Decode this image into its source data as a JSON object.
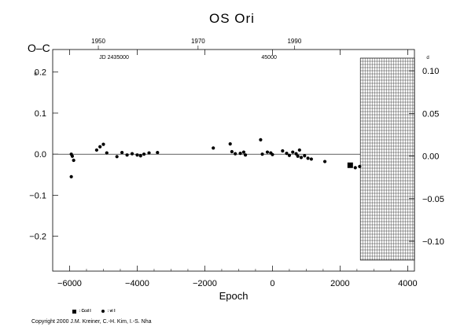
{
  "chart_data": {
    "type": "scatter",
    "title": "OS  Ori",
    "xlabel": "Epoch",
    "ylabel": "O–C",
    "xlim": [
      -6500,
      4200
    ],
    "ylim": [
      -0.285,
      0.255
    ],
    "x_ticks": [
      -6000,
      -4000,
      -2000,
      0,
      2000,
      4000
    ],
    "x_tick_labels": [
      "−6000",
      "−4000",
      "−2000",
      "0",
      "2000",
      "4000"
    ],
    "y_left_ticks": [
      0.2,
      0.1,
      0.0,
      -0.1,
      -0.2
    ],
    "y_left_tick_labels": [
      "0.2",
      "0.1",
      "0.0",
      "−0.1",
      "−0.2"
    ],
    "y_right_ticks": [
      0.1,
      0.05,
      0.0,
      -0.05,
      -0.1
    ],
    "y_right_tick_labels": [
      "0.10",
      "0.05",
      "0.00",
      "−0.05",
      "−0.10"
    ],
    "y_right_ylim": [
      -0.135,
      0.125
    ],
    "top_axis_years": [
      "1950",
      "1970",
      "1990"
    ],
    "top_axis_year_epochs": [
      -5150,
      -2200,
      650
    ],
    "annotations": [
      "JD 2435000",
      "45000",
      "d"
    ],
    "shaded_region_x": [
      2600,
      4200
    ],
    "grid": false,
    "series": [
      {
        "name": "ccd",
        "marker": "square",
        "points": [
          [
            2300,
            -0.027
          ]
        ]
      },
      {
        "name": "vis",
        "marker": "dot",
        "points": [
          [
            -5950,
            0.0
          ],
          [
            -5920,
            -0.005
          ],
          [
            -5880,
            -0.015
          ],
          [
            -5950,
            -0.055
          ],
          [
            -5200,
            0.01
          ],
          [
            -5100,
            0.018
          ],
          [
            -5000,
            0.024
          ],
          [
            -4900,
            0.003
          ],
          [
            -4600,
            -0.006
          ],
          [
            -4450,
            0.004
          ],
          [
            -4300,
            -0.002
          ],
          [
            -4150,
            0.001
          ],
          [
            -4000,
            -0.002
          ],
          [
            -3900,
            -0.004
          ],
          [
            -3800,
            0.0
          ],
          [
            -3650,
            0.003
          ],
          [
            -3400,
            0.004
          ],
          [
            -1750,
            0.015
          ],
          [
            -1250,
            0.025
          ],
          [
            -1200,
            0.006
          ],
          [
            -1100,
            0.001
          ],
          [
            -950,
            0.002
          ],
          [
            -850,
            0.005
          ],
          [
            -800,
            -0.002
          ],
          [
            -350,
            0.035
          ],
          [
            -300,
            0.0
          ],
          [
            -150,
            0.005
          ],
          [
            -50,
            0.003
          ],
          [
            0,
            -0.001
          ],
          [
            300,
            0.008
          ],
          [
            420,
            0.002
          ],
          [
            500,
            -0.003
          ],
          [
            600,
            0.005
          ],
          [
            700,
            0.001
          ],
          [
            750,
            -0.005
          ],
          [
            800,
            0.01
          ],
          [
            850,
            -0.008
          ],
          [
            950,
            -0.004
          ],
          [
            1050,
            -0.01
          ],
          [
            1150,
            -0.012
          ],
          [
            1550,
            -0.018
          ],
          [
            2450,
            -0.033
          ],
          [
            2580,
            -0.03
          ]
        ]
      }
    ],
    "legend": [
      {
        "marker": "square",
        "label": ": Ccd I"
      },
      {
        "marker": "dot",
        "label": ": vi I"
      }
    ]
  },
  "copyright": "Copyright 2000 J.M. Kreiner, C.-H. Kim, I.-S. Nha"
}
